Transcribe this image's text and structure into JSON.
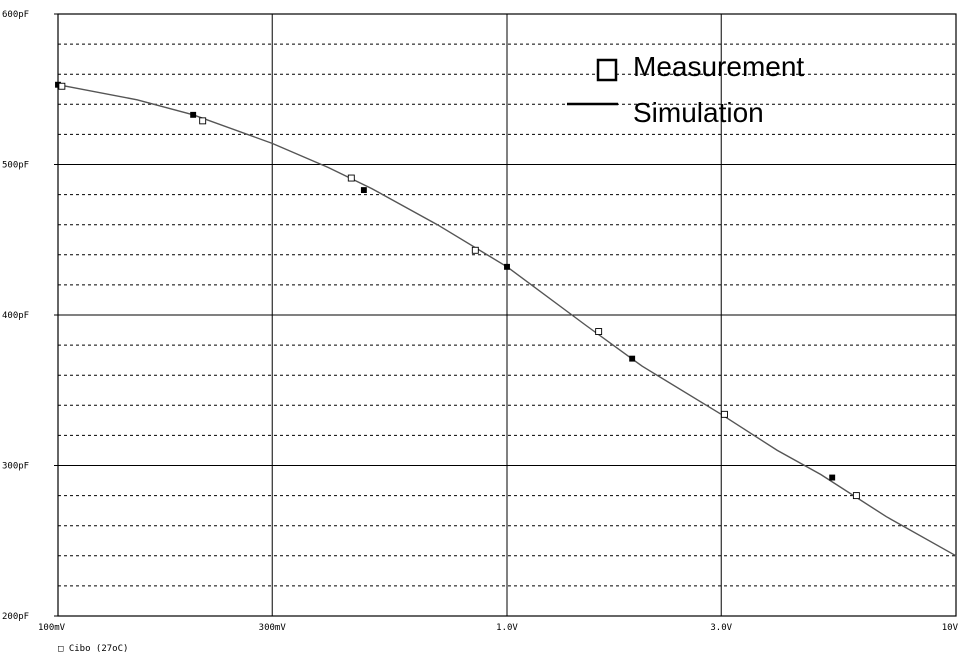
{
  "chart_data": {
    "type": "line",
    "x_scale": "log",
    "xlim": [
      0.1,
      10
    ],
    "ylim": [
      200,
      600
    ],
    "x_ticks": [
      {
        "value": 0.1,
        "label": "100mV"
      },
      {
        "value": 0.3,
        "label": "300mV"
      },
      {
        "value": 1.0,
        "label": "1.0V"
      },
      {
        "value": 3.0,
        "label": "3.0V"
      },
      {
        "value": 10,
        "label": "10V"
      }
    ],
    "y_ticks": [
      {
        "value": 200,
        "label": "200pF"
      },
      {
        "value": 300,
        "label": "300pF"
      },
      {
        "value": 400,
        "label": "400pF"
      },
      {
        "value": 500,
        "label": "500pF"
      },
      {
        "value": 600,
        "label": "600pF"
      }
    ],
    "y_minor_step": 20,
    "grid": true,
    "trace_label": "□ Cibo (27oC)",
    "legend": {
      "placement": "top-right",
      "items": [
        {
          "marker": "open-square",
          "label": "Measurement"
        },
        {
          "marker": "line",
          "label": "Simulation"
        }
      ]
    },
    "series": [
      {
        "name": "Measurement",
        "style": "markers",
        "x": [
          0.1,
          0.102,
          0.2,
          0.21,
          0.45,
          0.48,
          0.85,
          1.0,
          1.6,
          1.9,
          3.05,
          5.3,
          6.0
        ],
        "y": [
          553,
          552,
          533,
          529,
          491,
          483,
          443,
          432,
          389,
          371,
          334,
          292,
          280
        ],
        "filled": [
          true,
          false,
          true,
          false,
          false,
          true,
          false,
          true,
          false,
          true,
          false,
          true,
          false
        ]
      },
      {
        "name": "Simulation",
        "style": "line",
        "x": [
          0.1,
          0.15,
          0.2,
          0.3,
          0.4,
          0.5,
          0.7,
          1.0,
          1.5,
          2.0,
          3.0,
          4.0,
          5.0,
          7.0,
          10.0
        ],
        "y": [
          553,
          543,
          533,
          514,
          498,
          484,
          460,
          432,
          393,
          366,
          334,
          310,
          294,
          266,
          240
        ]
      }
    ]
  }
}
